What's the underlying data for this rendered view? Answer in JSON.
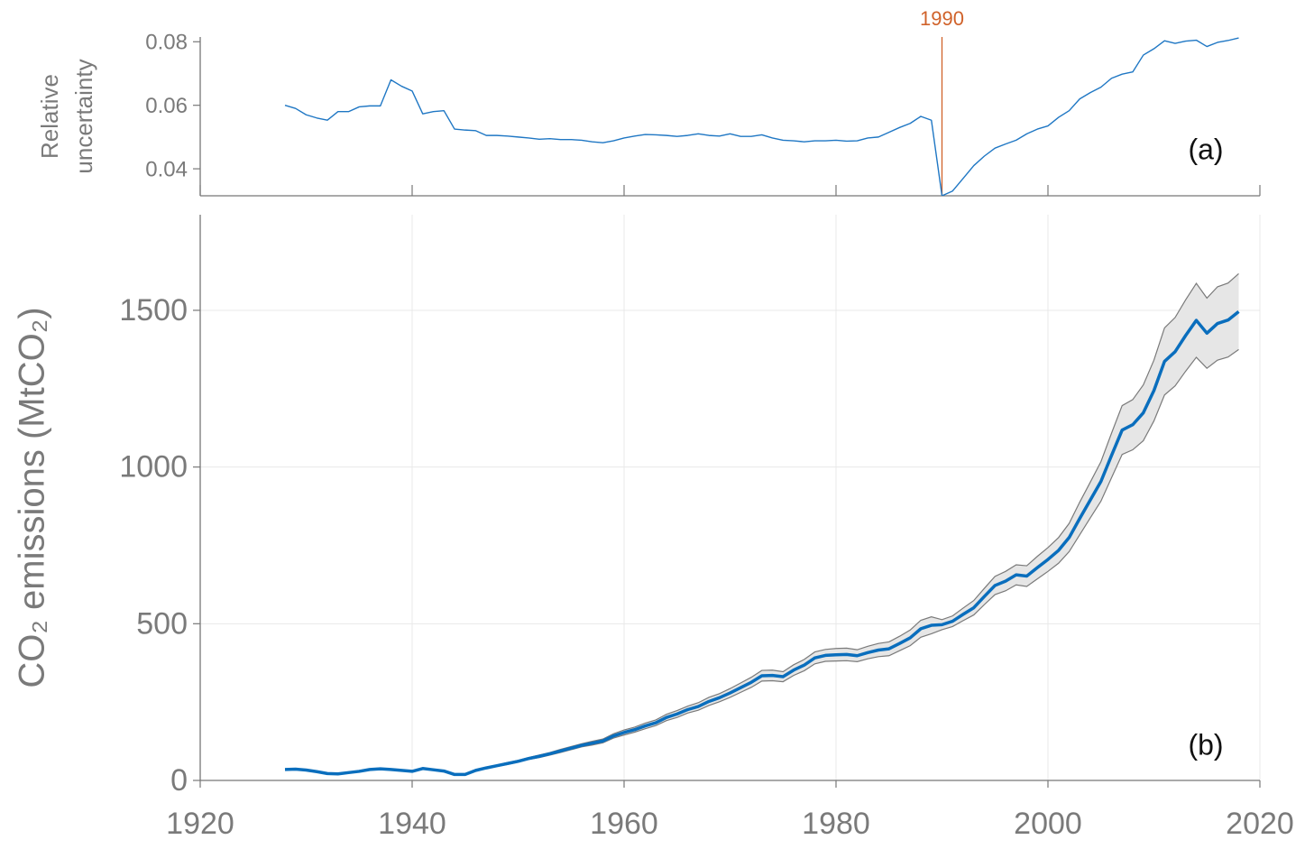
{
  "chart_data": [
    {
      "type": "line",
      "ylabel": [
        "Relative",
        "uncertainty"
      ],
      "annotation": "(a)",
      "vline": {
        "x": 1990,
        "label": "1990",
        "color": "#d0622a"
      },
      "xlim": [
        1920,
        2020
      ],
      "ylim": [
        0.0315,
        0.0815
      ],
      "yticks": [
        0.04,
        0.06,
        0.08
      ],
      "x": [
        1928,
        1929,
        1930,
        1931,
        1932,
        1933,
        1934,
        1935,
        1936,
        1937,
        1938,
        1939,
        1940,
        1941,
        1942,
        1943,
        1944,
        1945,
        1946,
        1947,
        1948,
        1949,
        1950,
        1951,
        1952,
        1953,
        1954,
        1955,
        1956,
        1957,
        1958,
        1959,
        1960,
        1961,
        1962,
        1963,
        1964,
        1965,
        1966,
        1967,
        1968,
        1969,
        1970,
        1971,
        1972,
        1973,
        1974,
        1975,
        1976,
        1977,
        1978,
        1979,
        1980,
        1981,
        1982,
        1983,
        1984,
        1985,
        1986,
        1987,
        1988,
        1989,
        1990,
        1991,
        1992,
        1993,
        1994,
        1995,
        1996,
        1997,
        1998,
        1999,
        2000,
        2001,
        2002,
        2003,
        2004,
        2005,
        2006,
        2007,
        2008,
        2009,
        2010,
        2011,
        2012,
        2013,
        2014,
        2015,
        2016,
        2017,
        2018
      ],
      "series": [
        {
          "color": "#1f77c4",
          "values": [
            0.06,
            0.059,
            0.057,
            0.056,
            0.0553,
            0.058,
            0.058,
            0.0595,
            0.0598,
            0.0598,
            0.068,
            0.066,
            0.0645,
            0.0573,
            0.058,
            0.0583,
            0.0525,
            0.0522,
            0.052,
            0.0505,
            0.0505,
            0.0503,
            0.05,
            0.0497,
            0.0493,
            0.0495,
            0.0492,
            0.0492,
            0.049,
            0.0485,
            0.0482,
            0.0488,
            0.0497,
            0.0503,
            0.0508,
            0.0507,
            0.0505,
            0.0502,
            0.0505,
            0.051,
            0.0505,
            0.0503,
            0.051,
            0.0502,
            0.0502,
            0.0507,
            0.0497,
            0.049,
            0.0488,
            0.0485,
            0.0488,
            0.0488,
            0.049,
            0.0487,
            0.0488,
            0.0497,
            0.05,
            0.0515,
            0.053,
            0.0543,
            0.0565,
            0.0553,
            0.0315,
            0.033,
            0.037,
            0.041,
            0.044,
            0.0465,
            0.0478,
            0.049,
            0.051,
            0.0525,
            0.0535,
            0.0562,
            0.0583,
            0.062,
            0.064,
            0.0657,
            0.0685,
            0.0698,
            0.0705,
            0.0758,
            0.0778,
            0.0803,
            0.0795,
            0.0802,
            0.0805,
            0.0785,
            0.0798,
            0.0804,
            0.0812
          ]
        }
      ]
    },
    {
      "type": "line",
      "ylabel": "CO₂ emissions (MtCO₂)",
      "annotation": "(b)",
      "grid": true,
      "xlim": [
        1920,
        2020
      ],
      "xticks": [
        1920,
        1940,
        1960,
        1980,
        2000,
        2020
      ],
      "ylim": [
        0,
        1805
      ],
      "yticks": [
        0,
        500,
        1000,
        1500
      ],
      "x": [
        1928,
        1929,
        1930,
        1931,
        1932,
        1933,
        1934,
        1935,
        1936,
        1937,
        1938,
        1939,
        1940,
        1941,
        1942,
        1943,
        1944,
        1945,
        1946,
        1947,
        1948,
        1949,
        1950,
        1951,
        1952,
        1953,
        1954,
        1955,
        1956,
        1957,
        1958,
        1959,
        1960,
        1961,
        1962,
        1963,
        1964,
        1965,
        1966,
        1967,
        1968,
        1969,
        1970,
        1971,
        1972,
        1973,
        1974,
        1975,
        1976,
        1977,
        1978,
        1979,
        1980,
        1981,
        1982,
        1983,
        1984,
        1985,
        1986,
        1987,
        1988,
        1989,
        1990,
        1991,
        1992,
        1993,
        1994,
        1995,
        1996,
        1997,
        1998,
        1999,
        2000,
        2001,
        2002,
        2003,
        2004,
        2005,
        2006,
        2007,
        2008,
        2009,
        2010,
        2011,
        2012,
        2013,
        2014,
        2015,
        2016,
        2017,
        2018
      ],
      "band": {
        "color": "#e6e6e6",
        "edge": "#7a7a7a",
        "lower": [
          33,
          34,
          31,
          26,
          21,
          20,
          24,
          27,
          33,
          35,
          33,
          30,
          27,
          36,
          32,
          28,
          18,
          18,
          30,
          38,
          45,
          51,
          58,
          67,
          73,
          81,
          89,
          98,
          107,
          113,
          120,
          135,
          145,
          154,
          165,
          175,
          191,
          201,
          215,
          224,
          239,
          251,
          265,
          281,
          297,
          317,
          318,
          315,
          335,
          350,
          372,
          380,
          381,
          382,
          379,
          388,
          395,
          398,
          414,
          430,
          457,
          468,
          481,
          491,
          510,
          528,
          561,
          593,
          605,
          624,
          619,
          643,
          667,
          693,
          730,
          784,
          838,
          891,
          966,
          1040,
          1055,
          1084,
          1147,
          1230,
          1259,
          1306,
          1350,
          1315,
          1341,
          1351,
          1375
        ],
        "upper": [
          37,
          38,
          35,
          30,
          23,
          22,
          26,
          31,
          37,
          39,
          37,
          34,
          31,
          40,
          36,
          32,
          20,
          20,
          34,
          42,
          49,
          57,
          64,
          73,
          81,
          89,
          99,
          108,
          117,
          125,
          132,
          149,
          161,
          170,
          183,
          193,
          211,
          223,
          237,
          248,
          265,
          277,
          293,
          311,
          329,
          351,
          352,
          347,
          369,
          386,
          410,
          418,
          421,
          422,
          417,
          428,
          437,
          442,
          460,
          480,
          511,
          522,
          513,
          525,
          550,
          574,
          613,
          651,
          667,
          688,
          685,
          715,
          743,
          775,
          820,
          888,
          952,
          1017,
          1108,
          1196,
          1215,
          1262,
          1341,
          1444,
          1477,
          1534,
          1586,
          1539,
          1575,
          1587,
          1617
        ]
      },
      "series": [
        {
          "color": "#0a6ebd",
          "values": [
            35,
            36,
            33,
            28,
            22,
            21,
            25,
            29,
            35,
            37,
            35,
            32,
            29,
            38,
            34,
            30,
            19,
            19,
            32,
            40,
            47,
            54,
            61,
            70,
            77,
            85,
            94,
            103,
            112,
            119,
            126,
            142,
            153,
            162,
            174,
            184,
            201,
            212,
            226,
            236,
            252,
            264,
            279,
            296,
            313,
            334,
            335,
            331,
            352,
            368,
            391,
            399,
            401,
            402,
            398,
            408,
            416,
            420,
            437,
            455,
            484,
            495,
            497,
            508,
            530,
            551,
            587,
            622,
            636,
            656,
            652,
            679,
            705,
            734,
            775,
            836,
            895,
            954,
            1037,
            1118,
            1135,
            1173,
            1244,
            1337,
            1368,
            1420,
            1468,
            1427,
            1458,
            1469,
            1496
          ]
        }
      ]
    }
  ]
}
